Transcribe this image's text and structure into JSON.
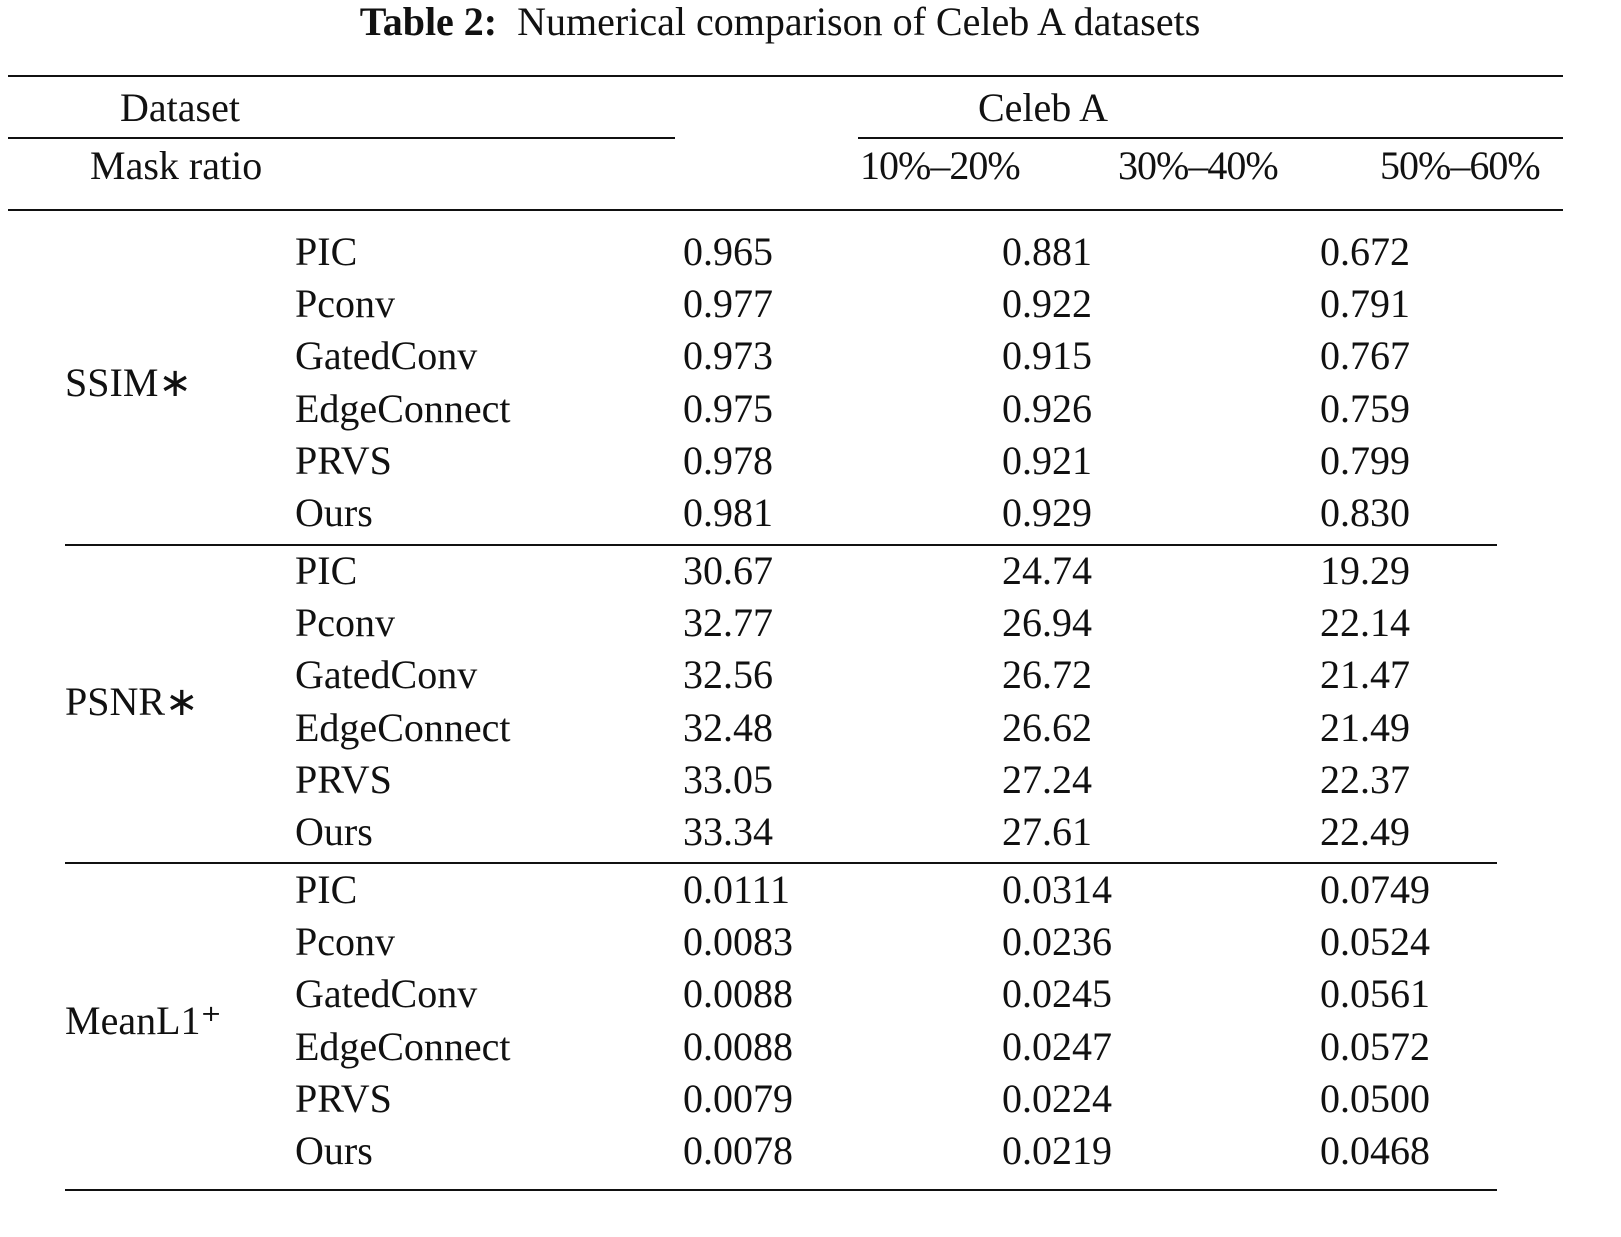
{
  "title": {
    "label": "Table 2:",
    "text": "Numerical comparison of Celeb A datasets"
  },
  "header": {
    "dataset": "Dataset",
    "dataset_name": "Celeb A",
    "mask_ratio": "Mask ratio",
    "columns": [
      "10%–20%",
      "30%–40%",
      "50%–60%"
    ]
  },
  "groups": [
    {
      "metric": "SSIM∗",
      "rows": [
        [
          "PIC",
          "0.965",
          "0.881",
          "0.672"
        ],
        [
          "Pconv",
          "0.977",
          "0.922",
          "0.791"
        ],
        [
          "GatedConv",
          "0.973",
          "0.915",
          "0.767"
        ],
        [
          "EdgeConnect",
          "0.975",
          "0.926",
          "0.759"
        ],
        [
          "PRVS",
          "0.978",
          "0.921",
          "0.799"
        ],
        [
          "Ours",
          "0.981",
          "0.929",
          "0.830"
        ]
      ]
    },
    {
      "metric": "PSNR∗",
      "rows": [
        [
          "PIC",
          "30.67",
          "24.74",
          "19.29"
        ],
        [
          "Pconv",
          "32.77",
          "26.94",
          "22.14"
        ],
        [
          "GatedConv",
          "32.56",
          "26.72",
          "21.47"
        ],
        [
          "EdgeConnect",
          "32.48",
          "26.62",
          "21.49"
        ],
        [
          "PRVS",
          "33.05",
          "27.24",
          "22.37"
        ],
        [
          "Ours",
          "33.34",
          "27.61",
          "22.49"
        ]
      ]
    },
    {
      "metric": "MeanL1⁺",
      "rows": [
        [
          "PIC",
          "0.0111",
          "0.0314",
          "0.0749"
        ],
        [
          "Pconv",
          "0.0083",
          "0.0236",
          "0.0524"
        ],
        [
          "GatedConv",
          "0.0088",
          "0.0245",
          "0.0561"
        ],
        [
          "EdgeConnect",
          "0.0088",
          "0.0247",
          "0.0572"
        ],
        [
          "PRVS",
          "0.0079",
          "0.0224",
          "0.0500"
        ],
        [
          "Ours",
          "0.0078",
          "0.0219",
          "0.0468"
        ]
      ]
    }
  ]
}
